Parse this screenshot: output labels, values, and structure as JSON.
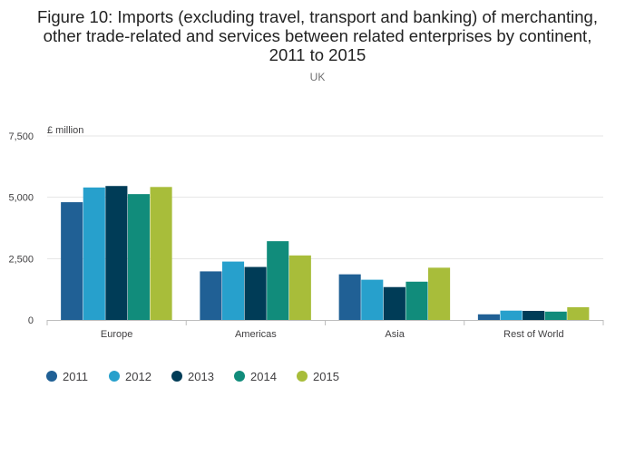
{
  "title_lines": [
    "Figure 10: Imports (excluding travel, transport and banking) of merchanting,",
    "other trade-related and services between related enterprises by continent,",
    "2011 to 2015"
  ],
  "subtitle": "UK",
  "chart_data": {
    "type": "bar",
    "title": "Figure 10: Imports (excluding travel, transport and banking) of merchanting, other trade-related and services between related enterprises by continent, 2011 to 2015",
    "subtitle": "UK",
    "ylabel": "£ million",
    "xlabel": "",
    "categories": [
      "Europe",
      "Americas",
      "Asia",
      "Rest of World"
    ],
    "ylim": [
      0,
      7500
    ],
    "yticks": [
      0,
      2500,
      5000,
      7500
    ],
    "ytick_labels": [
      "0",
      "2,500",
      "5,000",
      "7,500"
    ],
    "grid": true,
    "legend_position": "bottom-left",
    "series": [
      {
        "name": "2011",
        "color": "#206095",
        "values": [
          4800,
          1980,
          1860,
          230
        ]
      },
      {
        "name": "2012",
        "color": "#27a0cc",
        "values": [
          5400,
          2380,
          1640,
          380
        ]
      },
      {
        "name": "2013",
        "color": "#003c57",
        "values": [
          5460,
          2160,
          1340,
          370
        ]
      },
      {
        "name": "2014",
        "color": "#118c7b",
        "values": [
          5130,
          3210,
          1560,
          340
        ]
      },
      {
        "name": "2015",
        "color": "#a8bd3a",
        "values": [
          5420,
          2630,
          2130,
          520
        ]
      }
    ]
  }
}
